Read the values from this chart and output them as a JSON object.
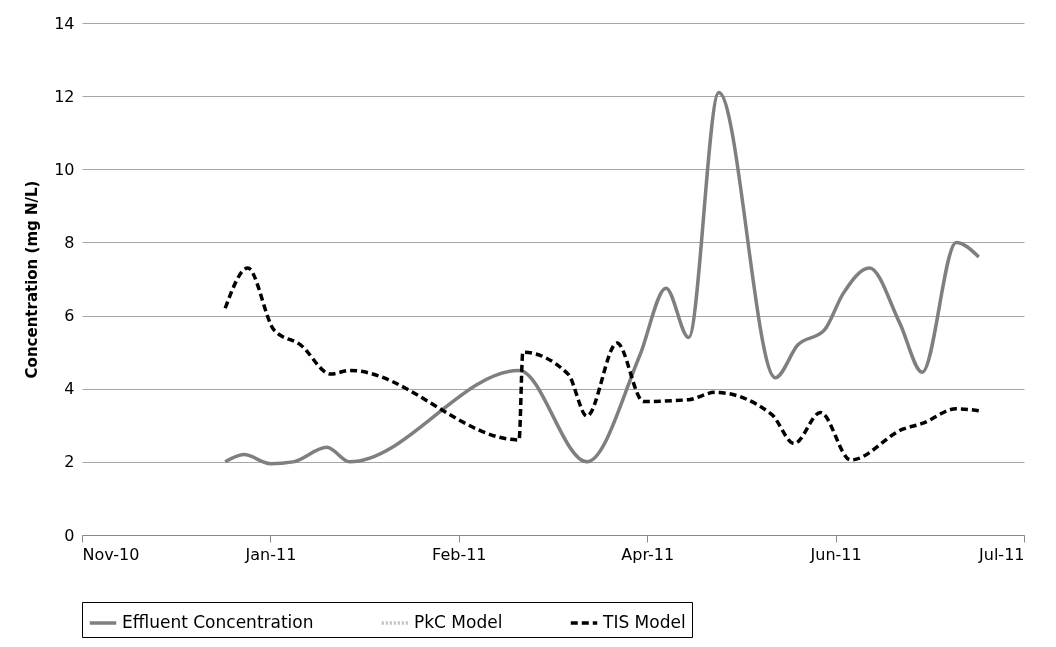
{
  "chart_data": {
    "type": "line",
    "ylabel": "Concentration (mg N/L)",
    "xlim": [
      "2010-11-18",
      "2011-07-26"
    ],
    "xticks": [
      {
        "value": "2010-11-18",
        "label": "Nov-10"
      },
      {
        "value": "2011-01-07",
        "label": "Jan-11"
      },
      {
        "value": "2011-02-26",
        "label": "Feb-11"
      },
      {
        "value": "2011-04-17",
        "label": "Apr-11"
      },
      {
        "value": "2011-06-06",
        "label": "Jun-11"
      },
      {
        "value": "2011-07-26",
        "label": "Jul-11"
      }
    ],
    "ylim": [
      0,
      14
    ],
    "yticks": [
      0,
      2,
      4,
      6,
      8,
      10,
      12,
      14
    ],
    "grid": "y",
    "legend": "bottom",
    "marker": "none",
    "series": [
      {
        "name": "Effluent Concentration",
        "color": "#7f7f7f",
        "line_style": "solid",
        "x": [
          "2010-12-26",
          "2010-12-31",
          "2011-01-07",
          "2011-01-13",
          "2011-01-22",
          "2011-01-28",
          "2011-03-14",
          "2011-04-01",
          "2011-04-15",
          "2011-04-22",
          "2011-04-28",
          "2011-05-06",
          "2011-05-21",
          "2011-05-27",
          "2011-06-03",
          "2011-06-08",
          "2011-06-15",
          "2011-06-23",
          "2011-06-29",
          "2011-07-08",
          "2011-07-14"
        ],
        "values": [
          2.0,
          2.2,
          1.95,
          2.0,
          2.4,
          2.0,
          4.5,
          2.0,
          4.9,
          6.75,
          5.4,
          12.1,
          4.3,
          5.2,
          5.6,
          6.6,
          7.3,
          5.8,
          4.45,
          8.0,
          7.6
        ]
      },
      {
        "name": "PkC Model",
        "color": "#bfbfbf",
        "line_style": "dotted"
      },
      {
        "name": "TIS Model",
        "color": "#000000",
        "line_style": "dashed",
        "x": [
          "2010-12-26",
          "2011-01-01",
          "2011-01-08",
          "2011-01-15",
          "2011-01-23",
          "2011-01-28",
          "2011-03-14",
          "2011-03-15",
          "2011-03-27",
          "2011-04-01",
          "2011-04-09",
          "2011-04-16",
          "2011-04-28",
          "2011-05-05",
          "2011-05-20",
          "2011-05-26",
          "2011-06-02",
          "2011-06-10",
          "2011-06-24",
          "2011-06-29",
          "2011-07-08",
          "2011-07-14"
        ],
        "values": [
          6.2,
          7.3,
          5.6,
          5.2,
          4.4,
          4.5,
          2.6,
          5.0,
          4.4,
          3.25,
          5.25,
          3.65,
          3.7,
          3.9,
          3.3,
          2.5,
          3.35,
          2.05,
          2.9,
          3.05,
          3.45,
          3.4
        ]
      }
    ]
  }
}
